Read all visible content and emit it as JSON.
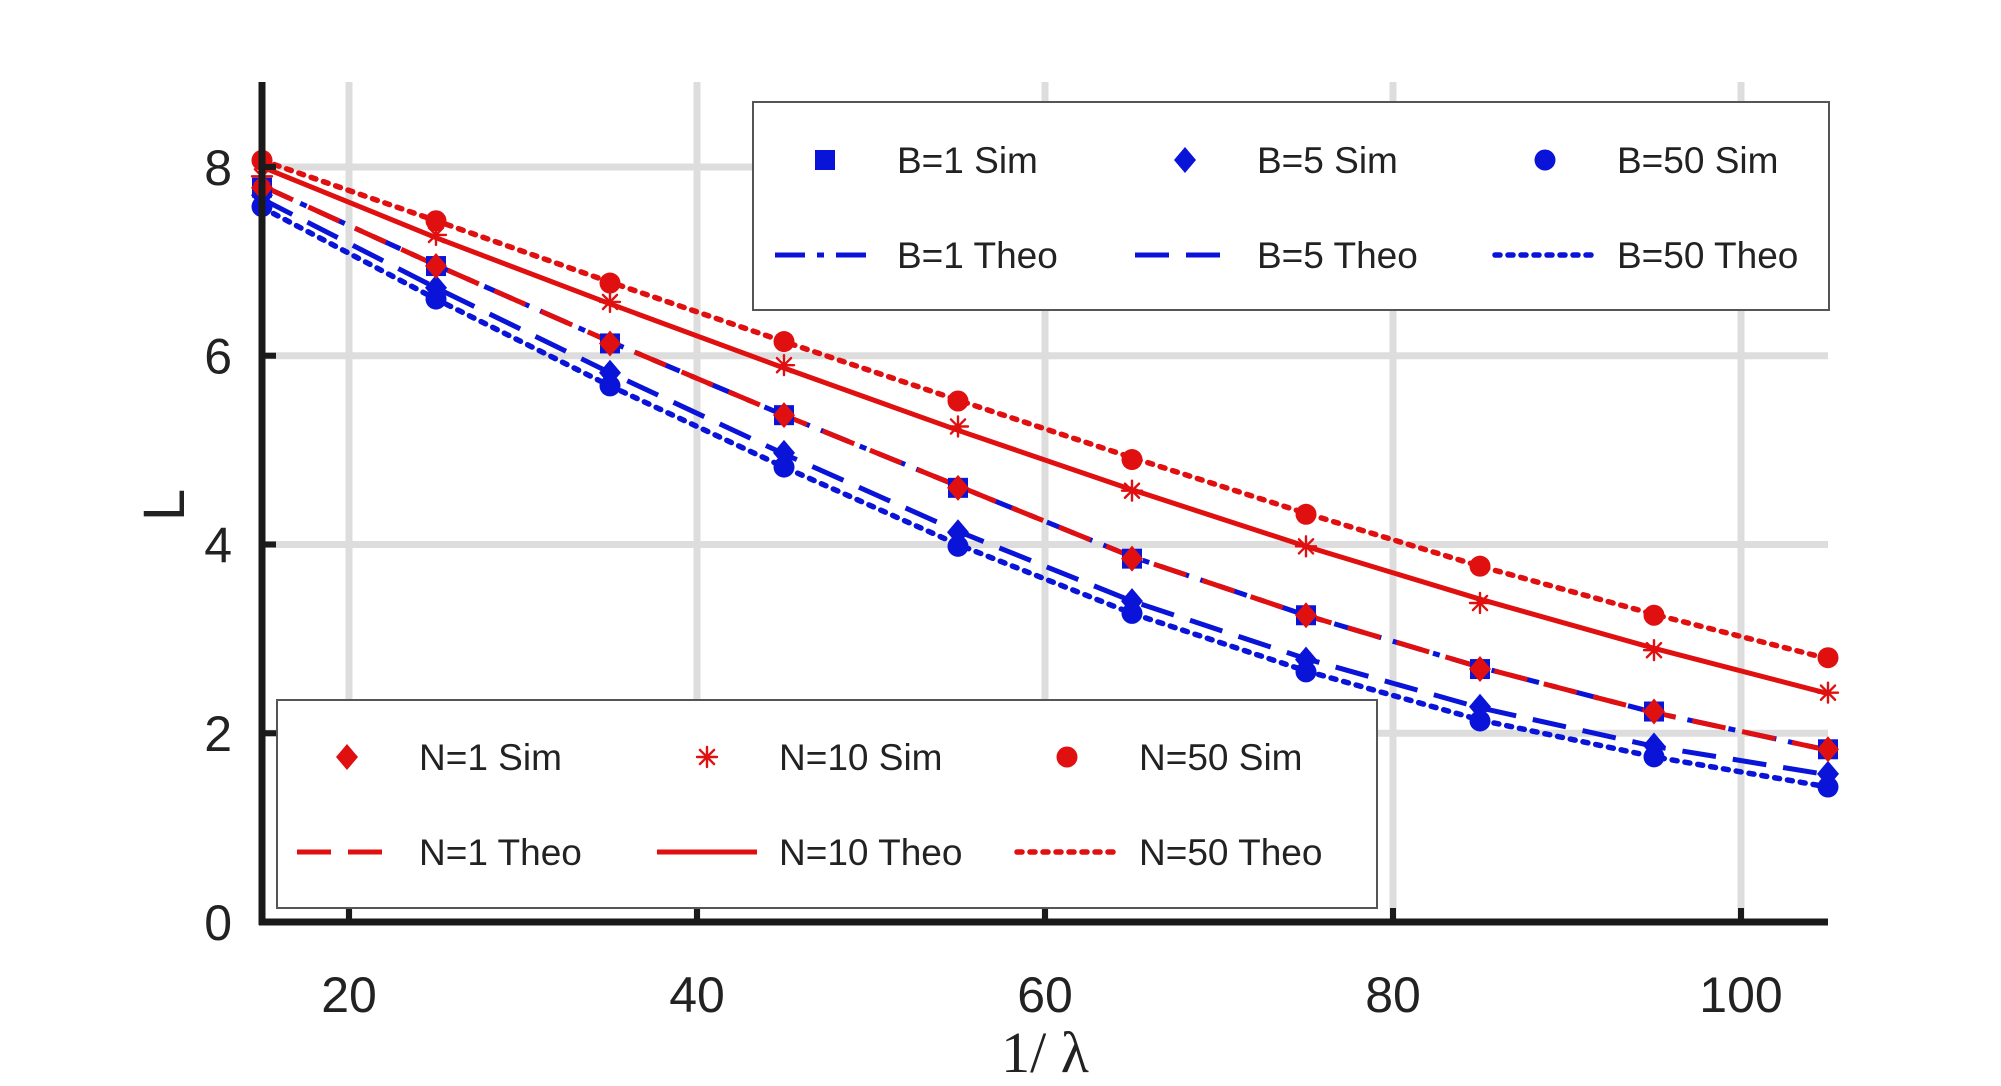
{
  "chart_data": {
    "type": "line",
    "xlabel": "1/ λ",
    "ylabel": "L",
    "xlim": [
      15,
      105
    ],
    "ylim": [
      0,
      8.9
    ],
    "xticks": [
      20,
      40,
      60,
      80,
      100
    ],
    "yticks": [
      0,
      2,
      4,
      6,
      8
    ],
    "grid": true,
    "x": [
      15,
      25,
      35,
      45,
      55,
      65,
      75,
      85,
      95,
      105
    ],
    "series": [
      {
        "name": "B=1 Sim",
        "kind": "markers",
        "marker": "square",
        "color": "#0a14d8",
        "values": [
          7.78,
          6.95,
          6.13,
          5.37,
          4.6,
          3.85,
          3.25,
          2.68,
          2.23,
          1.83
        ]
      },
      {
        "name": "B=5 Sim",
        "kind": "markers",
        "marker": "diamond",
        "color": "#0a14d8",
        "values": [
          7.7,
          6.72,
          5.82,
          4.97,
          4.13,
          3.4,
          2.78,
          2.28,
          1.87,
          1.57
        ]
      },
      {
        "name": "B=50 Sim",
        "kind": "markers",
        "marker": "circle",
        "color": "#0a14d8",
        "values": [
          7.58,
          6.6,
          5.68,
          4.82,
          3.98,
          3.27,
          2.65,
          2.13,
          1.75,
          1.43
        ]
      },
      {
        "name": "B=1 Theo",
        "kind": "line",
        "dash": "dashdot",
        "color": "#0a14d8",
        "values": [
          7.8,
          6.96,
          6.15,
          5.37,
          4.62,
          3.87,
          3.25,
          2.7,
          2.22,
          1.82
        ]
      },
      {
        "name": "B=5 Theo",
        "kind": "line",
        "dash": "dashed",
        "color": "#0a14d8",
        "values": [
          7.66,
          6.72,
          5.82,
          4.96,
          4.14,
          3.4,
          2.79,
          2.27,
          1.86,
          1.56
        ]
      },
      {
        "name": "B=50 Theo",
        "kind": "line",
        "dash": "dotted",
        "color": "#0a14d8",
        "values": [
          7.57,
          6.6,
          5.68,
          4.82,
          4.0,
          3.27,
          2.66,
          2.14,
          1.75,
          1.43
        ]
      },
      {
        "name": "N=1 Sim",
        "kind": "markers",
        "marker": "diamond",
        "color": "#e01010",
        "values": [
          7.78,
          6.95,
          6.13,
          5.37,
          4.6,
          3.85,
          3.25,
          2.68,
          2.23,
          1.83
        ]
      },
      {
        "name": "N=10 Sim",
        "kind": "markers",
        "marker": "asterisk",
        "color": "#e01010",
        "values": [
          7.9,
          7.28,
          6.57,
          5.9,
          5.25,
          4.57,
          3.98,
          3.38,
          2.88,
          2.43
        ]
      },
      {
        "name": "N=50 Sim",
        "kind": "markers",
        "marker": "circle",
        "color": "#e01010",
        "values": [
          8.07,
          7.43,
          6.77,
          6.15,
          5.52,
          4.9,
          4.32,
          3.77,
          3.25,
          2.8
        ]
      },
      {
        "name": "N=1 Theo",
        "kind": "line",
        "dash": "dashed",
        "color": "#e01010",
        "values": [
          7.8,
          6.96,
          6.15,
          5.37,
          4.62,
          3.87,
          3.25,
          2.7,
          2.22,
          1.82
        ]
      },
      {
        "name": "N=10 Theo",
        "kind": "line",
        "dash": "solid",
        "color": "#e01010",
        "values": [
          8.0,
          7.25,
          6.55,
          5.87,
          5.21,
          4.58,
          3.98,
          3.42,
          2.9,
          2.42
        ]
      },
      {
        "name": "N=50 Theo",
        "kind": "line",
        "dash": "dotted",
        "color": "#e01010",
        "values": [
          8.07,
          7.43,
          6.78,
          6.15,
          5.53,
          4.92,
          4.33,
          3.77,
          3.26,
          2.79
        ]
      }
    ],
    "legends": [
      {
        "placement": "top-right",
        "rows": [
          [
            "B=1 Sim",
            "B=5 Sim",
            "B=50 Sim"
          ],
          [
            "B=1 Theo",
            "B=5 Theo",
            "B=50 Theo"
          ]
        ]
      },
      {
        "placement": "bottom-left",
        "rows": [
          [
            "N=1 Sim",
            "N=10 Sim",
            "N=50 Sim"
          ],
          [
            "N=1 Theo",
            "N=10 Theo",
            "N=50 Theo"
          ]
        ]
      }
    ]
  }
}
